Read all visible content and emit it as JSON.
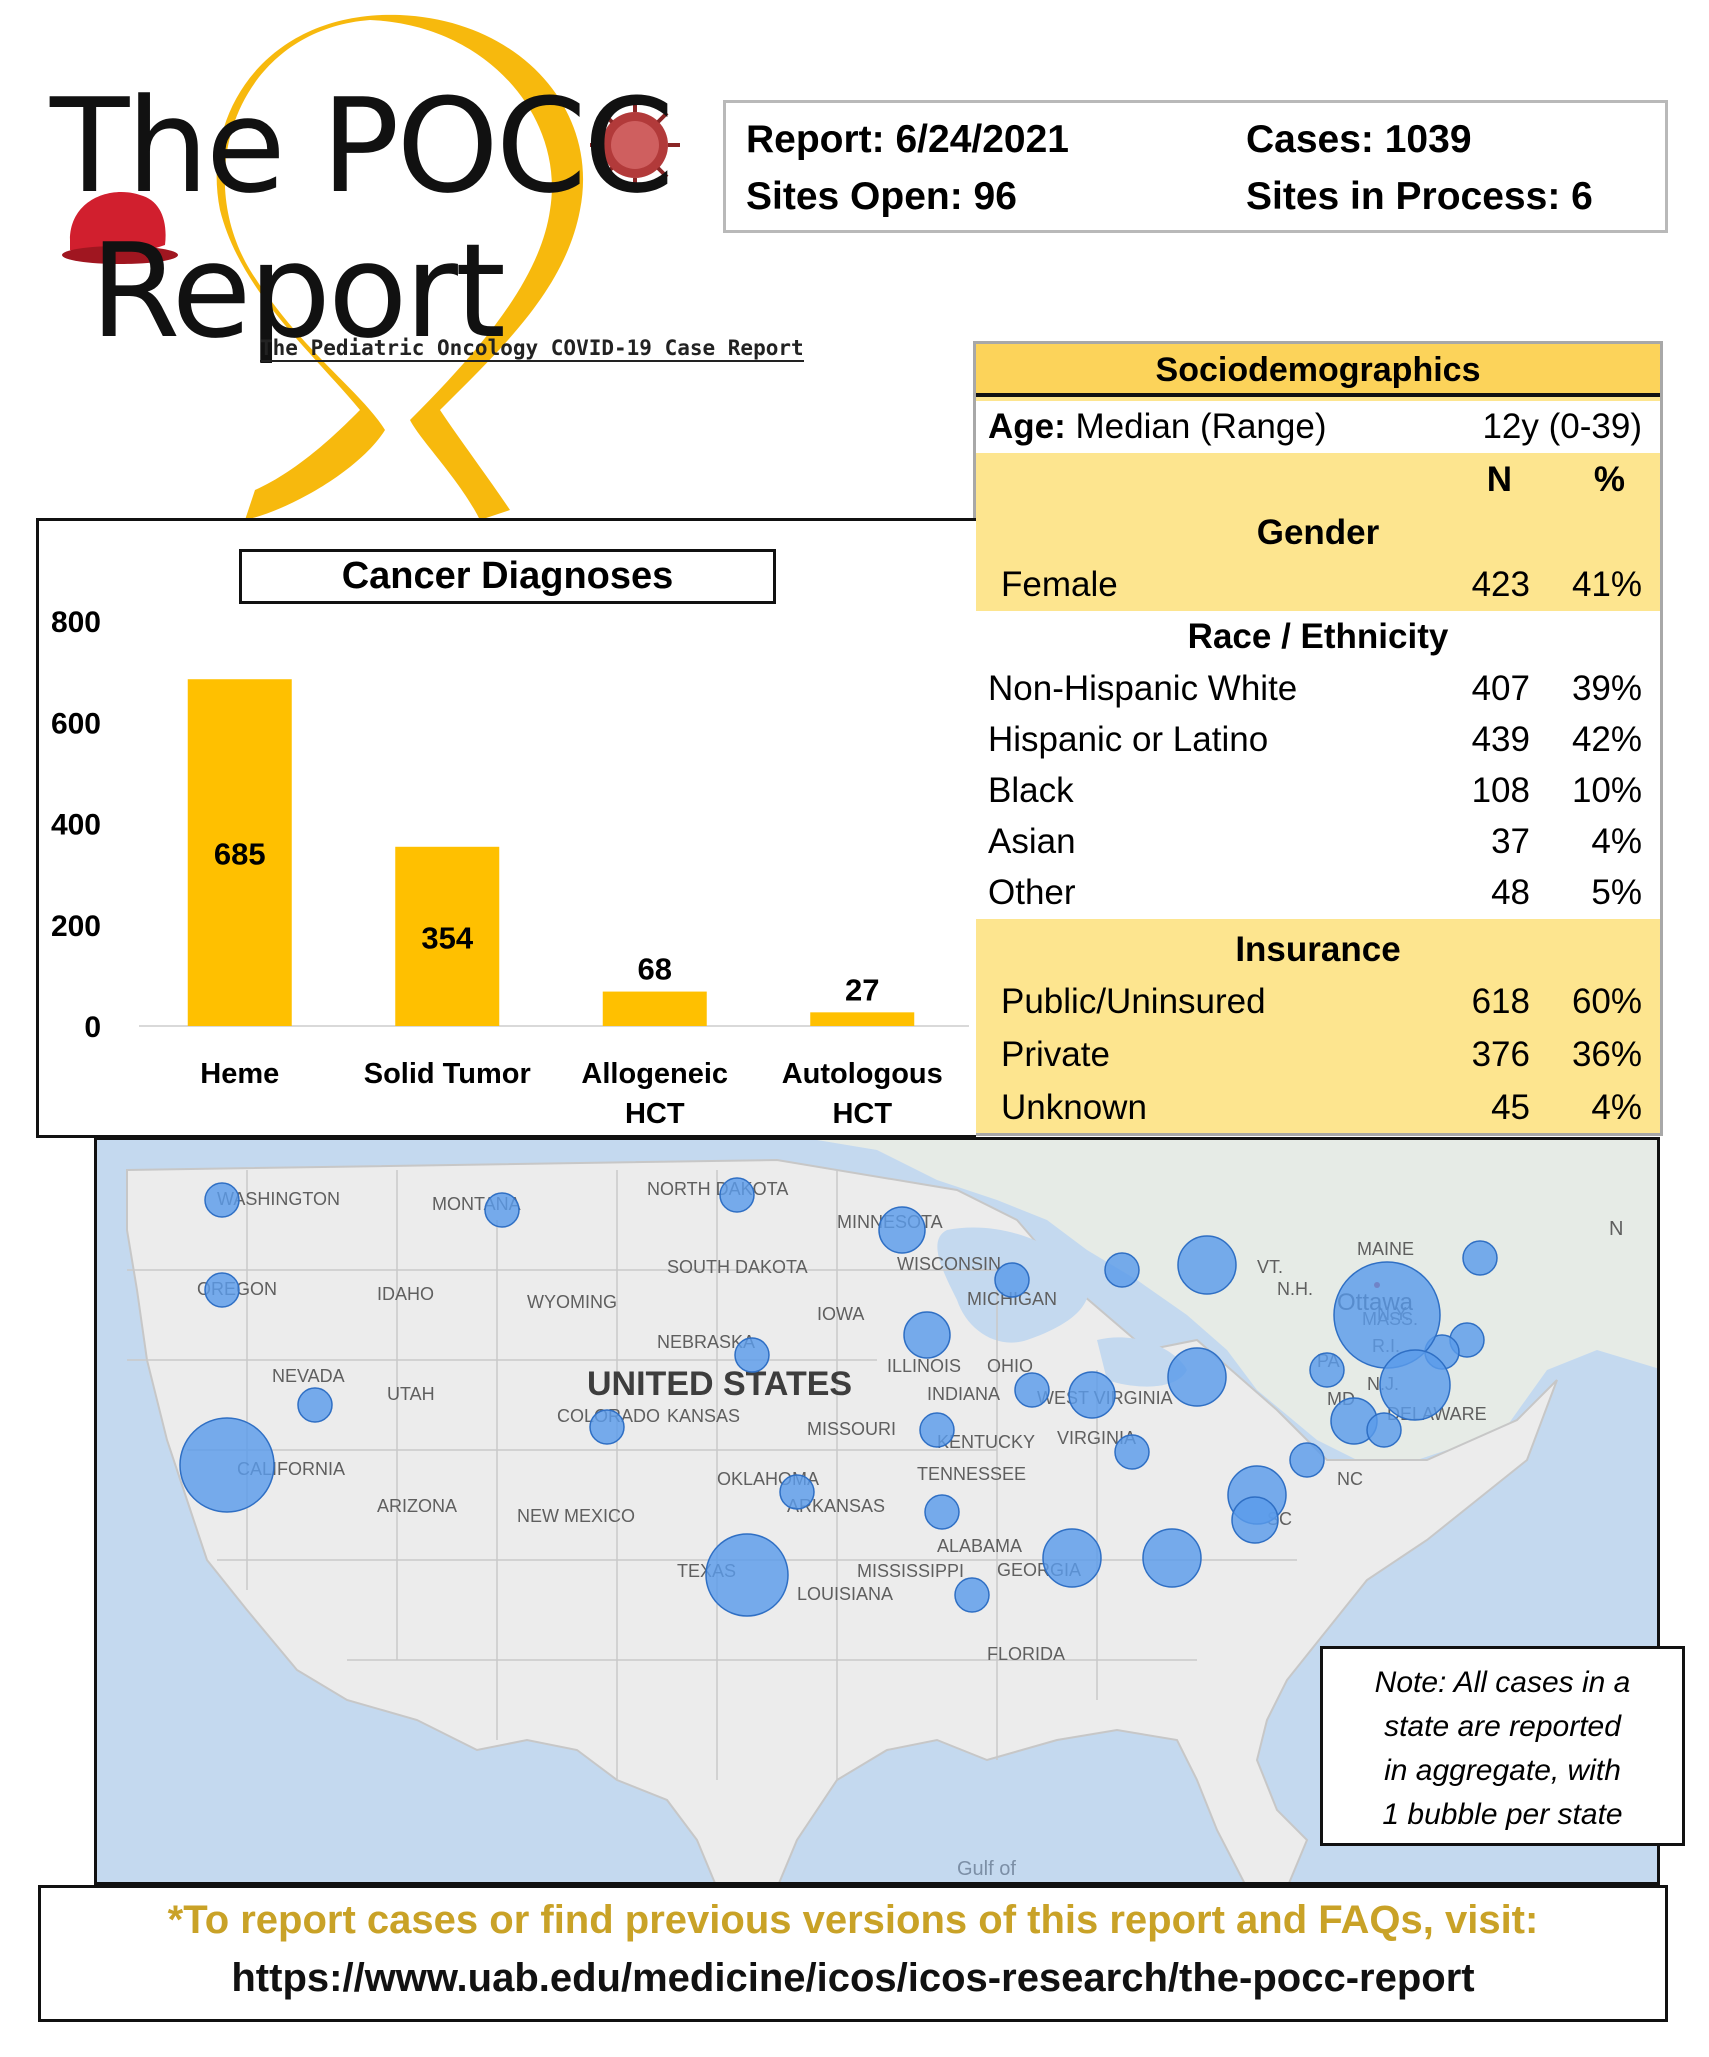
{
  "logo": {
    "line1": "The POCC",
    "line2": "Report",
    "subtitle": "The Pediatric Oncology COVID-19 Case Report",
    "ribbon_color": "#f7b500",
    "cap_color": "#d11f2e",
    "virus_color": "#b23a3a"
  },
  "report_info": {
    "report": "Report: 6/24/2021",
    "sites_open": "Sites Open: 96",
    "cases": "Cases: 1039",
    "sites_in_process": "Sites in Process: 6"
  },
  "sociodemographics": {
    "title": "Sociodemographics",
    "age_label": "Age:",
    "age_desc": " Median (Range)",
    "age_value": "12y (0-39)",
    "col_n": "N",
    "col_pct": "%",
    "gender_header": "Gender",
    "gender": [
      {
        "label": "Female",
        "n": "423",
        "pct": "41%"
      }
    ],
    "race_header": "Race / Ethnicity",
    "race": [
      {
        "label": "Non-Hispanic White",
        "n": "407",
        "pct": "39%"
      },
      {
        "label": "Hispanic or Latino",
        "n": "439",
        "pct": "42%"
      },
      {
        "label": "Black",
        "n": "108",
        "pct": "10%"
      },
      {
        "label": "Asian",
        "n": "37",
        "pct": "4%"
      },
      {
        "label": "Other",
        "n": "48",
        "pct": "5%"
      }
    ],
    "insurance_header": "Insurance",
    "insurance": [
      {
        "label": "Public/Uninsured",
        "n": "618",
        "pct": "60%"
      },
      {
        "label": "Private",
        "n": "376",
        "pct": "36%"
      },
      {
        "label": "Unknown",
        "n": "45",
        "pct": "4%"
      }
    ],
    "colors": {
      "header": "#fcd35a",
      "band": "#fde58f",
      "white": "#ffffff"
    }
  },
  "chart_data": {
    "type": "bar",
    "title": "Cancer Diagnoses",
    "categories": [
      [
        "Heme"
      ],
      [
        "Solid Tumor"
      ],
      [
        "Allogeneic",
        "HCT"
      ],
      [
        "Autologous",
        "HCT"
      ]
    ],
    "values": [
      685,
      354,
      68,
      27
    ],
    "ylim": [
      0,
      800
    ],
    "yticks": [
      0,
      200,
      400,
      600,
      800
    ],
    "xlabel": "",
    "ylabel": "",
    "bar_color": "#ffc000",
    "grid": false,
    "legend": "none"
  },
  "map": {
    "country_label": "UNITED STATES",
    "gulf_label": "Gulf of",
    "city_label": "Ottawa",
    "edge_label": "N",
    "bubble_color": "#5a9bea",
    "land_color": "#ececec",
    "water_color": "#c4d9ef",
    "state_labels": [
      "WASHINGTON",
      "MONTANA",
      "NORTH DAKOTA",
      "MINNESOTA",
      "OREGON",
      "IDAHO",
      "WYOMING",
      "SOUTH DAKOTA",
      "WISCONSIN",
      "MICHIGAN",
      "NEBRASKA",
      "IOWA",
      "NEVADA",
      "UTAH",
      "COLORADO",
      "KANSAS",
      "MISSOURI",
      "ILLINOIS",
      "INDIANA",
      "OHIO",
      "CALIFORNIA",
      "ARIZONA",
      "NEW MEXICO",
      "OKLAHOMA",
      "ARKANSAS",
      "TENNESSEE",
      "KENTUCKY",
      "WEST VIRGINIA",
      "VIRGINIA",
      "TEXAS",
      "MISSISSIPPI",
      "ALABAMA",
      "GEORGIA",
      "LOUISIANA",
      "FLORIDA",
      "VT.",
      "N.H.",
      "MAINE",
      "MASS.",
      "R.I.",
      "N.Y.",
      "PA",
      "N.J.",
      "MD",
      "DELAWARE",
      "NC",
      "SC"
    ],
    "bubbles": [
      {
        "state": "Washington",
        "size": 1
      },
      {
        "state": "Montana",
        "size": 1
      },
      {
        "state": "North Dakota",
        "size": 1
      },
      {
        "state": "Minnesota",
        "size": 2
      },
      {
        "state": "Oregon",
        "size": 1
      },
      {
        "state": "Wisconsin",
        "size": 1
      },
      {
        "state": "Michigan",
        "size": 1
      },
      {
        "state": "Nebraska",
        "size": 1
      },
      {
        "state": "Iowa",
        "size": 2
      },
      {
        "state": "Nevada",
        "size": 1
      },
      {
        "state": "Colorado",
        "size": 1
      },
      {
        "state": "Missouri",
        "size": 1
      },
      {
        "state": "Illinois",
        "size": 1
      },
      {
        "state": "Indiana",
        "size": 2
      },
      {
        "state": "Ohio",
        "size": 3
      },
      {
        "state": "California",
        "size": 6
      },
      {
        "state": "Oklahoma",
        "size": 1
      },
      {
        "state": "Arkansas",
        "size": 1
      },
      {
        "state": "Kentucky",
        "size": 1
      },
      {
        "state": "Virginia",
        "size": 1
      },
      {
        "state": "Texas",
        "size": 5
      },
      {
        "state": "Mississippi",
        "size": 1
      },
      {
        "state": "Alabama",
        "size": 3
      },
      {
        "state": "Georgia",
        "size": 3
      },
      {
        "state": "Florida",
        "size": 3
      },
      {
        "state": "Maine",
        "size": 1
      },
      {
        "state": "Massachusetts",
        "size": 1
      },
      {
        "state": "Rhode Island",
        "size": 1
      },
      {
        "state": "New York",
        "size": 7
      },
      {
        "state": "Pennsylvania",
        "size": 1
      },
      {
        "state": "New Jersey",
        "size": 4
      },
      {
        "state": "Maryland",
        "size": 2
      },
      {
        "state": "Delaware",
        "size": 1
      },
      {
        "state": "North Carolina",
        "size": 3
      },
      {
        "state": "South Carolina",
        "size": 2
      }
    ],
    "note": [
      "Note: All cases in a",
      "state are reported",
      "in aggregate, with",
      "1 bubble per state"
    ]
  },
  "footer": {
    "cta": "*To report cases or find previous versions of this report and FAQs, visit:",
    "url": "https://www.uab.edu/medicine/icos/icos-research/the-pocc-report",
    "cta_color": "#c9a227"
  }
}
